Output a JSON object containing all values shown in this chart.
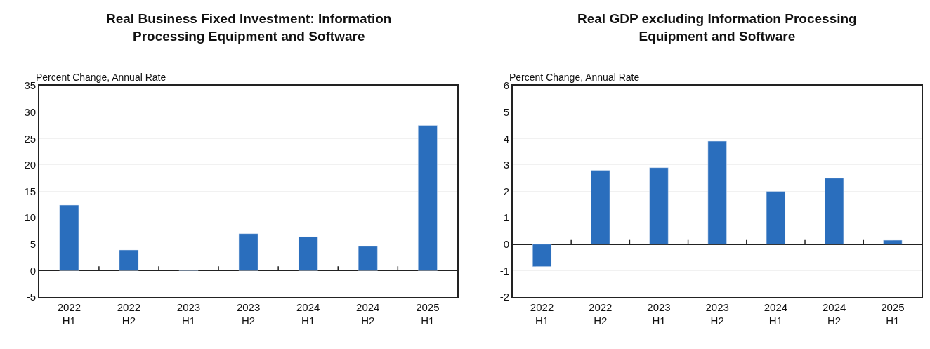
{
  "chart_data": [
    {
      "type": "bar",
      "title": "Real Business Fixed Investment: Information\nProcessing Equipment and Software",
      "ylabel": "Percent Change, Annual Rate",
      "categories": [
        "2022\nH1",
        "2022\nH2",
        "2023\nH1",
        "2023\nH2",
        "2024\nH1",
        "2024\nH2",
        "2025\nH1"
      ],
      "values": [
        12.4,
        3.9,
        0.1,
        7.0,
        6.4,
        4.6,
        27.5
      ],
      "color": "#2a6ebd",
      "ylim": [
        -5,
        35
      ],
      "yticks": [
        -5,
        0,
        5,
        10,
        15,
        20,
        25,
        30,
        35
      ],
      "grid": "y",
      "legend": false
    },
    {
      "type": "bar",
      "title": "Real GDP excluding Information Processing\nEquipment and Software",
      "ylabel": "Percent Change, Annual Rate",
      "categories": [
        "2022\nH1",
        "2022\nH2",
        "2023\nH1",
        "2023\nH2",
        "2024\nH1",
        "2024\nH2",
        "2025\nH1"
      ],
      "values": [
        -0.85,
        2.8,
        2.9,
        3.9,
        2.0,
        2.5,
        0.15
      ],
      "color": "#2a6ebd",
      "ylim": [
        -2,
        6
      ],
      "yticks": [
        -2,
        -1,
        0,
        1,
        2,
        3,
        4,
        5,
        6
      ],
      "grid": "y",
      "legend": false
    }
  ]
}
